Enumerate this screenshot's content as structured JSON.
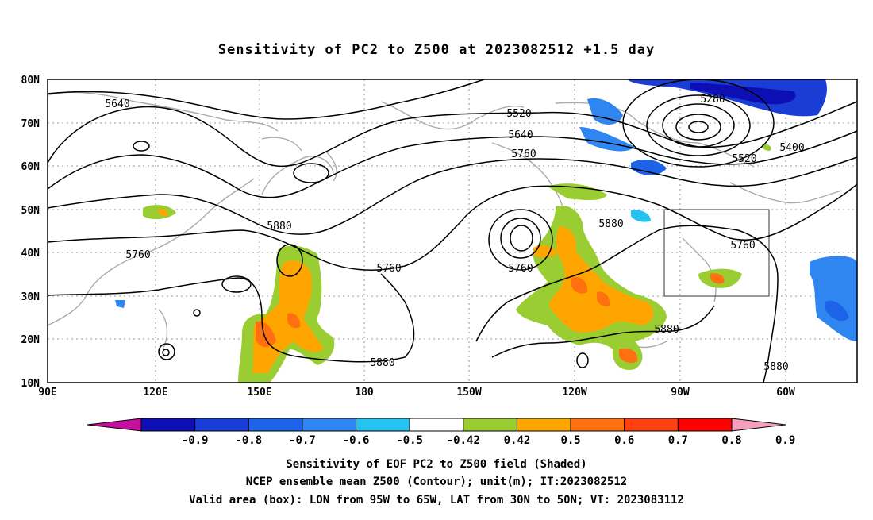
{
  "title": "Sensitivity of PC2 to Z500 at 2023082512 +1.5 day",
  "axes": {
    "lat_ticks": [
      "80N",
      "70N",
      "60N",
      "50N",
      "40N",
      "30N",
      "20N",
      "10N"
    ],
    "lon_ticks": [
      "90E",
      "120E",
      "150E",
      "180",
      "150W",
      "120W",
      "90W",
      "60W"
    ]
  },
  "contour_labels": [
    "5640",
    "5520",
    "5640",
    "5760",
    "5280",
    "5400",
    "5520",
    "5880",
    "5760",
    "5880",
    "5760",
    "5760",
    "5880",
    "5760",
    "5880",
    "5880"
  ],
  "box_label": "Valid area (box): LON from 95W to 65W, LAT from 30N to 50N; VT: 2023083112",
  "colorbar": {
    "labels": [
      "-0.9",
      "-0.8",
      "-0.7",
      "-0.6",
      "-0.5",
      "-0.42",
      "0.42",
      "0.5",
      "0.6",
      "0.7",
      "0.8",
      "0.9"
    ],
    "colors": [
      "#c4109c",
      "#0d0fb5",
      "#1a3dd6",
      "#1c63e8",
      "#2f86f0",
      "#25c2f2",
      "#ffffff",
      "#9acd32",
      "#ffa500",
      "#ff7010",
      "#ff4010",
      "#ff0000",
      "#f6a0c0"
    ]
  },
  "footer": {
    "line1": "Sensitivity of EOF PC2 to Z500 field (Shaded)",
    "line2": "NCEP ensemble mean Z500 (Contour); unit(m); IT:2023082512",
    "line3": "Valid area (box): LON from 95W to 65W, LAT from 30N to 50N; VT: 2023083112"
  }
}
